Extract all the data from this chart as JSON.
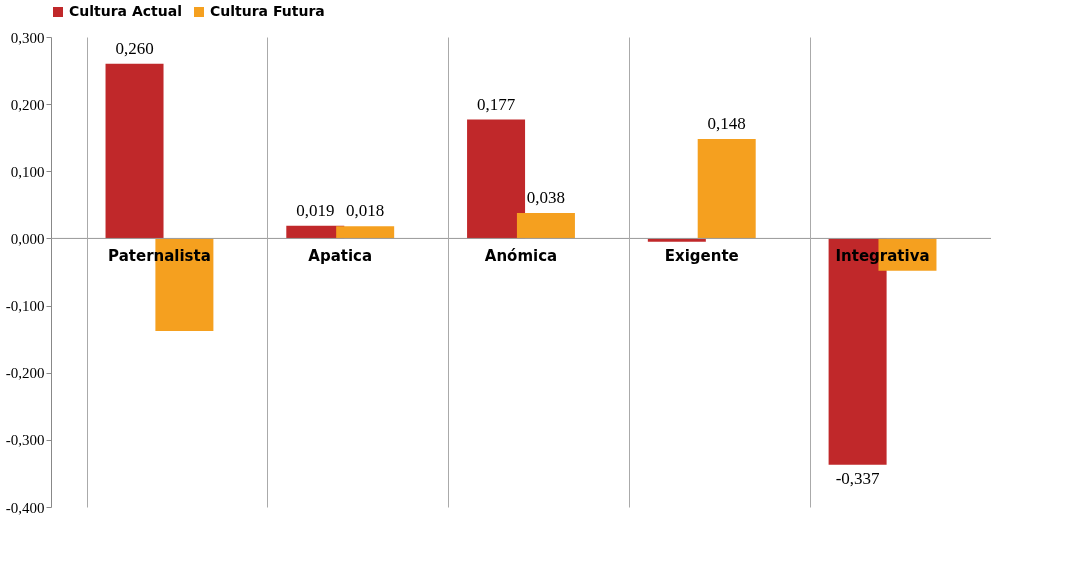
{
  "chart_data": {
    "type": "bar",
    "categories": [
      "Paternalista",
      "Apatica",
      "Anómica",
      "Exigente",
      "Integrativa"
    ],
    "series": [
      {
        "name": "Cultura Actual",
        "color": "#c0282a",
        "values": [
          0.26,
          0.019,
          0.177,
          -0.005,
          -0.337
        ],
        "value_labels": [
          "0,260",
          "0,019",
          "0,177",
          null,
          "-0,337"
        ]
      },
      {
        "name": "Cultura Futura",
        "color": "#f5a01f",
        "values": [
          -0.138,
          0.018,
          0.038,
          0.148,
          -0.048
        ],
        "value_labels": [
          null,
          "0,018",
          "0,038",
          "0,148",
          null
        ]
      }
    ],
    "ylim": [
      -0.4,
      0.3
    ],
    "yticks": [
      {
        "value": -0.4,
        "label": "-0,400"
      },
      {
        "value": -0.3,
        "label": "-0,300"
      },
      {
        "value": -0.2,
        "label": "-0,200"
      },
      {
        "value": -0.1,
        "label": "-0,100"
      },
      {
        "value": 0,
        "label": "0,000"
      },
      {
        "value": 0.1,
        "label": "0,100"
      },
      {
        "value": 0.2,
        "label": "0,200"
      },
      {
        "value": 0.3,
        "label": "0,300"
      }
    ],
    "grid": "x",
    "legend": "top"
  }
}
